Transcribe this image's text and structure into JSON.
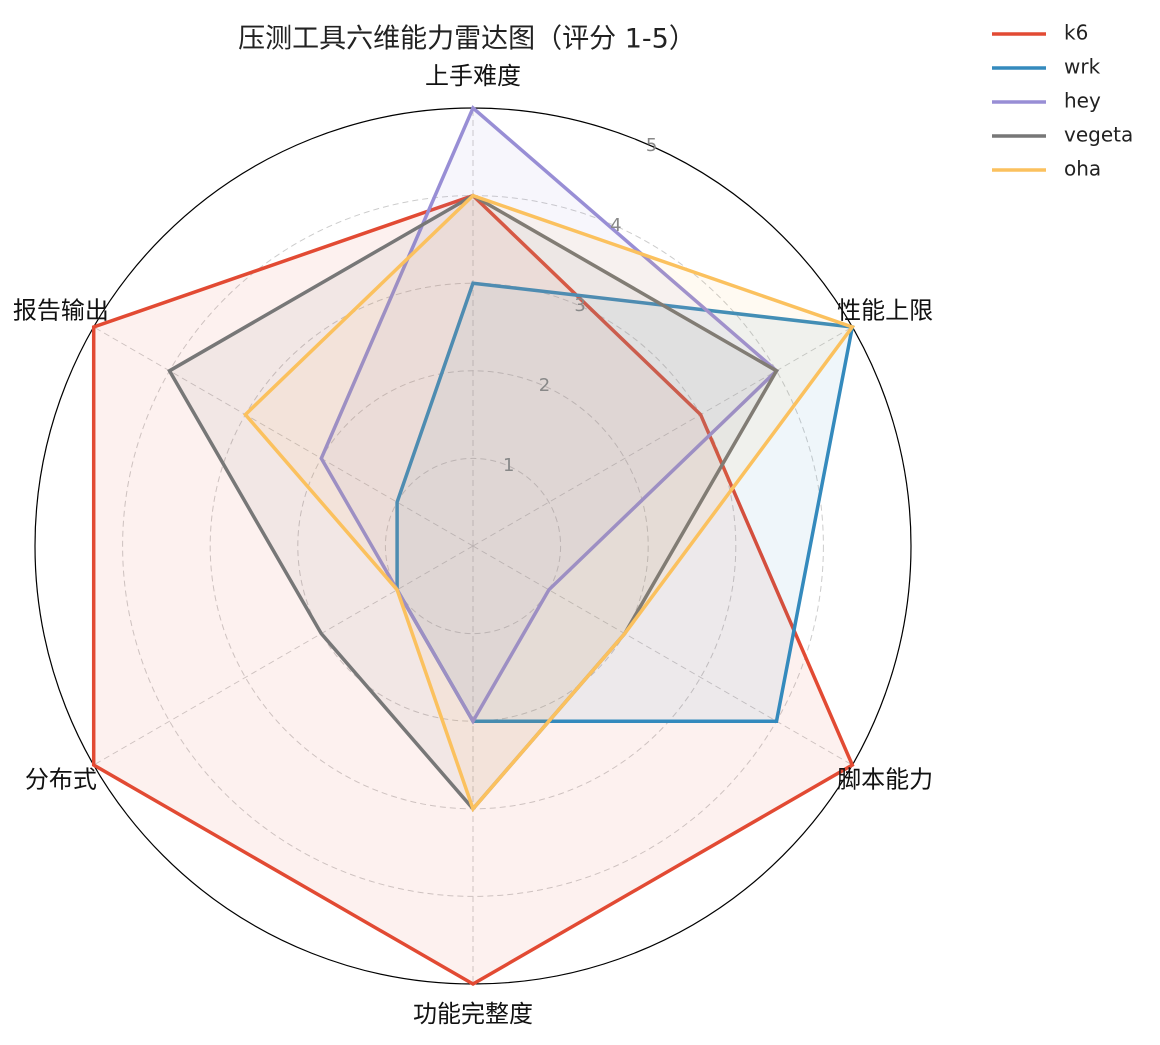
{
  "chart_data": {
    "type": "radar",
    "title": "压测工具六维能力雷达图（评分 1-5）",
    "categories": [
      "上手难度",
      "性能上限",
      "脚本能力",
      "功能完整度",
      "分布式",
      "报告输出"
    ],
    "ylim": [
      0,
      5
    ],
    "yticks": [
      1,
      2,
      3,
      4,
      5
    ],
    "grid": true,
    "legend": "upper right",
    "series": [
      {
        "name": "k6",
        "color": "#e24a33",
        "values": [
          4,
          3,
          5,
          5,
          5,
          5
        ]
      },
      {
        "name": "wrk",
        "color": "#348abd",
        "values": [
          3,
          5,
          4,
          2,
          1,
          1
        ]
      },
      {
        "name": "hey",
        "color": "#988ed5",
        "values": [
          5,
          4,
          1,
          2,
          1,
          2
        ]
      },
      {
        "name": "vegeta",
        "color": "#777777",
        "values": [
          4,
          4,
          2,
          3,
          2,
          4
        ]
      },
      {
        "name": "oha",
        "color": "#fbc15e",
        "values": [
          4,
          5,
          2,
          3,
          1,
          3
        ]
      }
    ]
  }
}
